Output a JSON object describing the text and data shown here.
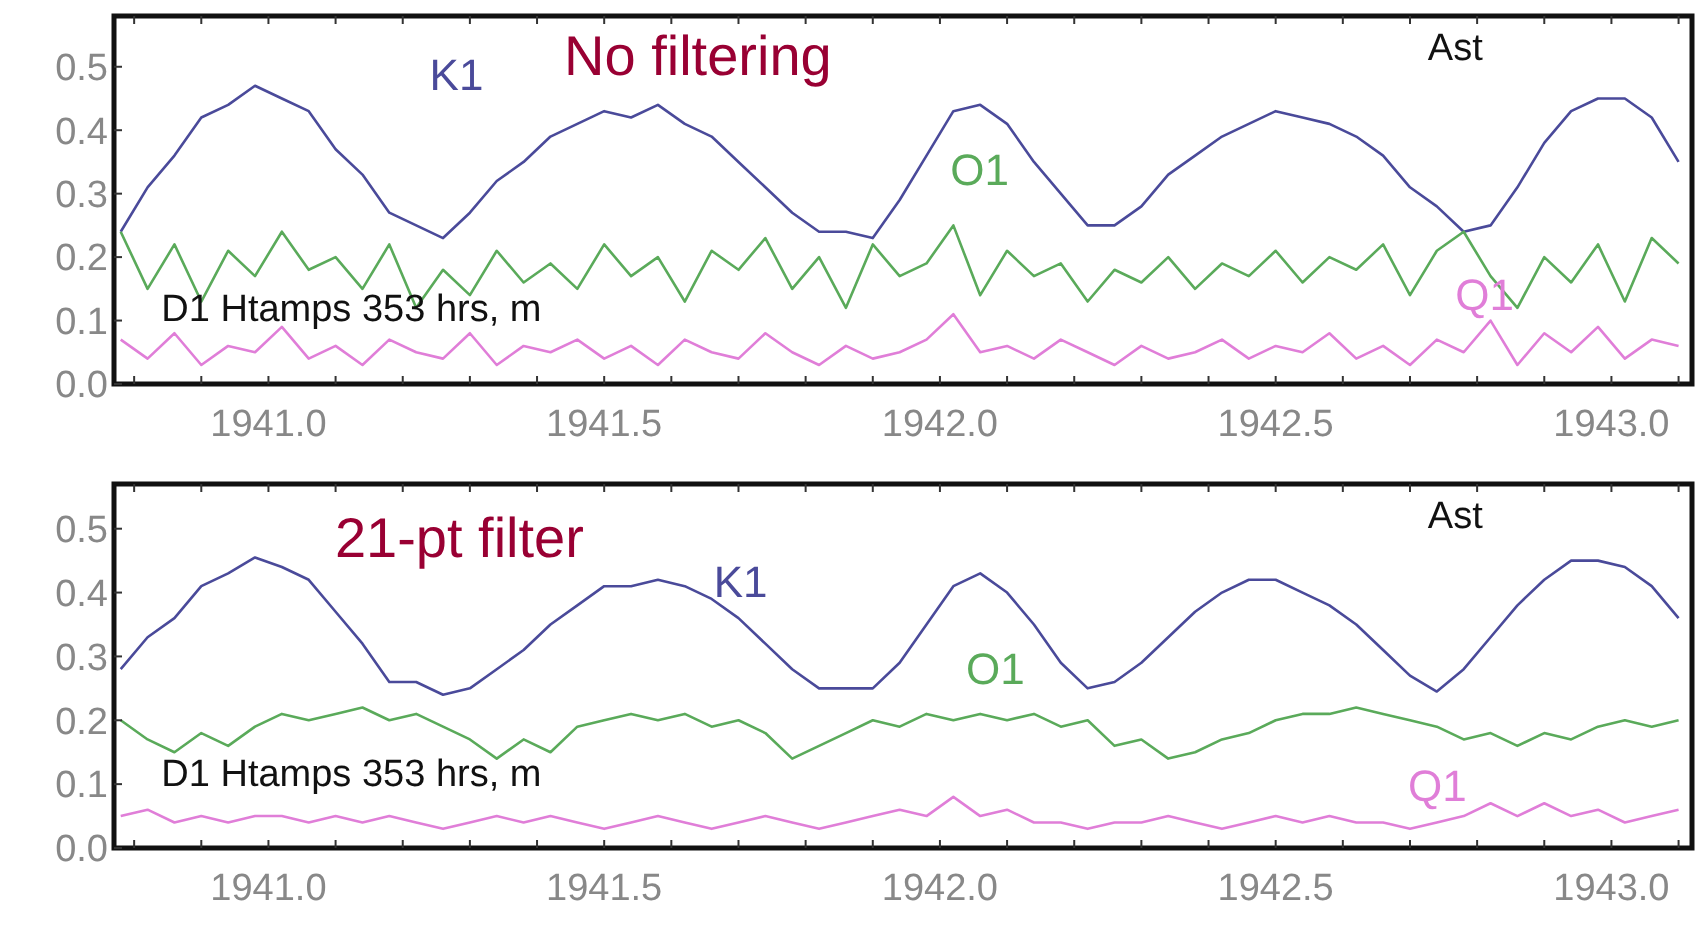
{
  "chart_data": [
    {
      "type": "line",
      "title": "No filtering",
      "annotations": [
        "Ast",
        "D1 Htamps 353 hrs, m"
      ],
      "x": [
        1940.78,
        1940.82,
        1940.86,
        1940.9,
        1940.94,
        1940.98,
        1941.02,
        1941.06,
        1941.1,
        1941.14,
        1941.18,
        1941.22,
        1941.26,
        1941.3,
        1941.34,
        1941.38,
        1941.42,
        1941.46,
        1941.5,
        1941.54,
        1941.58,
        1941.62,
        1941.66,
        1941.7,
        1941.74,
        1941.78,
        1941.82,
        1941.86,
        1941.9,
        1941.94,
        1941.98,
        1942.02,
        1942.06,
        1942.1,
        1942.14,
        1942.18,
        1942.22,
        1942.26,
        1942.3,
        1942.34,
        1942.38,
        1942.42,
        1942.46,
        1942.5,
        1942.54,
        1942.58,
        1942.62,
        1942.66,
        1942.7,
        1942.74,
        1942.78,
        1942.82,
        1942.86,
        1942.9,
        1942.94,
        1942.98,
        1943.02,
        1943.06,
        1943.1
      ],
      "series": [
        {
          "name": "K1",
          "color": "#4a4a9a",
          "values": [
            0.24,
            0.31,
            0.36,
            0.42,
            0.44,
            0.47,
            0.45,
            0.43,
            0.37,
            0.33,
            0.27,
            0.25,
            0.23,
            0.27,
            0.32,
            0.35,
            0.39,
            0.41,
            0.43,
            0.42,
            0.44,
            0.41,
            0.39,
            0.35,
            0.31,
            0.27,
            0.24,
            0.24,
            0.23,
            0.29,
            0.36,
            0.43,
            0.44,
            0.41,
            0.35,
            0.3,
            0.25,
            0.25,
            0.28,
            0.33,
            0.36,
            0.39,
            0.41,
            0.43,
            0.42,
            0.41,
            0.39,
            0.36,
            0.31,
            0.28,
            0.24,
            0.25,
            0.31,
            0.38,
            0.43,
            0.45,
            0.45,
            0.42,
            0.35
          ]
        },
        {
          "name": "O1",
          "color": "#5aaa5a",
          "values": [
            0.24,
            0.15,
            0.22,
            0.13,
            0.21,
            0.17,
            0.24,
            0.18,
            0.2,
            0.15,
            0.22,
            0.12,
            0.18,
            0.14,
            0.21,
            0.16,
            0.19,
            0.15,
            0.22,
            0.17,
            0.2,
            0.13,
            0.21,
            0.18,
            0.23,
            0.15,
            0.2,
            0.12,
            0.22,
            0.17,
            0.19,
            0.25,
            0.14,
            0.21,
            0.17,
            0.19,
            0.13,
            0.18,
            0.16,
            0.2,
            0.15,
            0.19,
            0.17,
            0.21,
            0.16,
            0.2,
            0.18,
            0.22,
            0.14,
            0.21,
            0.24,
            0.17,
            0.12,
            0.2,
            0.16,
            0.22,
            0.13,
            0.23,
            0.19
          ]
        },
        {
          "name": "Q1",
          "color": "#e07ed8",
          "values": [
            0.07,
            0.04,
            0.08,
            0.03,
            0.06,
            0.05,
            0.09,
            0.04,
            0.06,
            0.03,
            0.07,
            0.05,
            0.04,
            0.08,
            0.03,
            0.06,
            0.05,
            0.07,
            0.04,
            0.06,
            0.03,
            0.07,
            0.05,
            0.04,
            0.08,
            0.05,
            0.03,
            0.06,
            0.04,
            0.05,
            0.07,
            0.11,
            0.05,
            0.06,
            0.04,
            0.07,
            0.05,
            0.03,
            0.06,
            0.04,
            0.05,
            0.07,
            0.04,
            0.06,
            0.05,
            0.08,
            0.04,
            0.06,
            0.03,
            0.07,
            0.05,
            0.1,
            0.03,
            0.08,
            0.05,
            0.09,
            0.04,
            0.07,
            0.06
          ]
        }
      ],
      "xlim": [
        1940.77,
        1943.12
      ],
      "ylim": [
        0,
        0.58
      ],
      "xticks": [
        {
          "value": 1940.8,
          "label": null
        },
        {
          "value": 1940.9,
          "label": null
        },
        {
          "value": 1941.0,
          "label": "1941.0"
        },
        {
          "value": 1941.1,
          "label": null
        },
        {
          "value": 1941.2,
          "label": null
        },
        {
          "value": 1941.3,
          "label": null
        },
        {
          "value": 1941.4,
          "label": null
        },
        {
          "value": 1941.5,
          "label": "1941.5"
        },
        {
          "value": 1941.6,
          "label": null
        },
        {
          "value": 1941.7,
          "label": null
        },
        {
          "value": 1941.8,
          "label": null
        },
        {
          "value": 1941.9,
          "label": null
        },
        {
          "value": 1942.0,
          "label": "1942.0"
        },
        {
          "value": 1942.1,
          "label": null
        },
        {
          "value": 1942.2,
          "label": null
        },
        {
          "value": 1942.3,
          "label": null
        },
        {
          "value": 1942.4,
          "label": null
        },
        {
          "value": 1942.5,
          "label": "1942.5"
        },
        {
          "value": 1942.6,
          "label": null
        },
        {
          "value": 1942.7,
          "label": null
        },
        {
          "value": 1942.8,
          "label": null
        },
        {
          "value": 1942.9,
          "label": null
        },
        {
          "value": 1943.0,
          "label": "1943.0"
        },
        {
          "value": 1943.1,
          "label": null
        }
      ],
      "yticks": [
        {
          "value": 0,
          "label": "0.0"
        },
        {
          "value": 0.1,
          "label": "0.1"
        },
        {
          "value": 0.2,
          "label": "0.2"
        },
        {
          "value": 0.3,
          "label": "0.3"
        },
        {
          "value": 0.4,
          "label": "0.4"
        },
        {
          "value": 0.5,
          "label": "0.5"
        }
      ],
      "grid": false,
      "marker": "none",
      "line_style": "solid"
    },
    {
      "type": "line",
      "title": "21-pt filter",
      "annotations": [
        "Ast",
        "D1 Htamps 353 hrs, m"
      ],
      "x": [
        1940.78,
        1940.82,
        1940.86,
        1940.9,
        1940.94,
        1940.98,
        1941.02,
        1941.06,
        1941.1,
        1941.14,
        1941.18,
        1941.22,
        1941.26,
        1941.3,
        1941.34,
        1941.38,
        1941.42,
        1941.46,
        1941.5,
        1941.54,
        1941.58,
        1941.62,
        1941.66,
        1941.7,
        1941.74,
        1941.78,
        1941.82,
        1941.86,
        1941.9,
        1941.94,
        1941.98,
        1942.02,
        1942.06,
        1942.1,
        1942.14,
        1942.18,
        1942.22,
        1942.26,
        1942.3,
        1942.34,
        1942.38,
        1942.42,
        1942.46,
        1942.5,
        1942.54,
        1942.58,
        1942.62,
        1942.66,
        1942.7,
        1942.74,
        1942.78,
        1942.82,
        1942.86,
        1942.9,
        1942.94,
        1942.98,
        1943.02,
        1943.06,
        1943.1
      ],
      "series": [
        {
          "name": "K1",
          "color": "#4a4a9a",
          "values": [
            0.28,
            0.33,
            0.36,
            0.41,
            0.43,
            0.455,
            0.44,
            0.42,
            0.37,
            0.32,
            0.26,
            0.26,
            0.24,
            0.25,
            0.28,
            0.31,
            0.35,
            0.38,
            0.41,
            0.41,
            0.42,
            0.41,
            0.39,
            0.36,
            0.32,
            0.28,
            0.25,
            0.25,
            0.25,
            0.29,
            0.35,
            0.41,
            0.43,
            0.4,
            0.35,
            0.29,
            0.25,
            0.26,
            0.29,
            0.33,
            0.37,
            0.4,
            0.42,
            0.42,
            0.4,
            0.38,
            0.35,
            0.31,
            0.27,
            0.245,
            0.28,
            0.33,
            0.38,
            0.42,
            0.45,
            0.45,
            0.44,
            0.41,
            0.36
          ]
        },
        {
          "name": "O1",
          "color": "#5aaa5a",
          "values": [
            0.2,
            0.17,
            0.15,
            0.18,
            0.16,
            0.19,
            0.21,
            0.2,
            0.21,
            0.22,
            0.2,
            0.21,
            0.19,
            0.17,
            0.14,
            0.17,
            0.15,
            0.19,
            0.2,
            0.21,
            0.2,
            0.21,
            0.19,
            0.2,
            0.18,
            0.14,
            0.16,
            0.18,
            0.2,
            0.19,
            0.21,
            0.2,
            0.21,
            0.2,
            0.21,
            0.19,
            0.2,
            0.16,
            0.17,
            0.14,
            0.15,
            0.17,
            0.18,
            0.2,
            0.21,
            0.21,
            0.22,
            0.21,
            0.2,
            0.19,
            0.17,
            0.18,
            0.16,
            0.18,
            0.17,
            0.19,
            0.2,
            0.19,
            0.2
          ]
        },
        {
          "name": "Q1",
          "color": "#e07ed8",
          "values": [
            0.05,
            0.06,
            0.04,
            0.05,
            0.04,
            0.05,
            0.05,
            0.04,
            0.05,
            0.04,
            0.05,
            0.04,
            0.03,
            0.04,
            0.05,
            0.04,
            0.05,
            0.04,
            0.03,
            0.04,
            0.05,
            0.04,
            0.03,
            0.04,
            0.05,
            0.04,
            0.03,
            0.04,
            0.05,
            0.06,
            0.05,
            0.08,
            0.05,
            0.06,
            0.04,
            0.04,
            0.03,
            0.04,
            0.04,
            0.05,
            0.04,
            0.03,
            0.04,
            0.05,
            0.04,
            0.05,
            0.04,
            0.04,
            0.03,
            0.04,
            0.05,
            0.07,
            0.05,
            0.07,
            0.05,
            0.06,
            0.04,
            0.05,
            0.06
          ]
        }
      ],
      "xlim": [
        1940.77,
        1943.12
      ],
      "ylim": [
        0,
        0.57
      ],
      "xticks": [
        {
          "value": 1940.8,
          "label": null
        },
        {
          "value": 1940.9,
          "label": null
        },
        {
          "value": 1941.0,
          "label": "1941.0"
        },
        {
          "value": 1941.1,
          "label": null
        },
        {
          "value": 1941.2,
          "label": null
        },
        {
          "value": 1941.3,
          "label": null
        },
        {
          "value": 1941.4,
          "label": null
        },
        {
          "value": 1941.5,
          "label": "1941.5"
        },
        {
          "value": 1941.6,
          "label": null
        },
        {
          "value": 1941.7,
          "label": null
        },
        {
          "value": 1941.8,
          "label": null
        },
        {
          "value": 1941.9,
          "label": null
        },
        {
          "value": 1942.0,
          "label": "1942.0"
        },
        {
          "value": 1942.1,
          "label": null
        },
        {
          "value": 1942.2,
          "label": null
        },
        {
          "value": 1942.3,
          "label": null
        },
        {
          "value": 1942.4,
          "label": null
        },
        {
          "value": 1942.5,
          "label": "1942.5"
        },
        {
          "value": 1942.6,
          "label": null
        },
        {
          "value": 1942.7,
          "label": null
        },
        {
          "value": 1942.8,
          "label": null
        },
        {
          "value": 1942.9,
          "label": null
        },
        {
          "value": 1943.0,
          "label": "1943.0"
        },
        {
          "value": 1943.1,
          "label": null
        }
      ],
      "yticks": [
        {
          "value": 0,
          "label": "0.0"
        },
        {
          "value": 0.1,
          "label": "0.1"
        },
        {
          "value": 0.2,
          "label": "0.2"
        },
        {
          "value": 0.3,
          "label": "0.3"
        },
        {
          "value": 0.4,
          "label": "0.4"
        },
        {
          "value": 0.5,
          "label": "0.5"
        }
      ],
      "grid": false,
      "marker": "none",
      "line_style": "solid"
    }
  ]
}
